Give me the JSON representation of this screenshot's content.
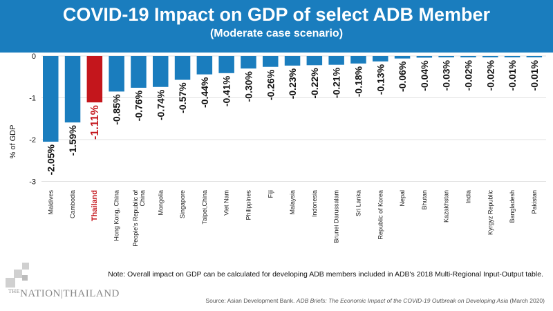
{
  "header": {
    "title": "COVID-19 Impact on GDP of select ADB Member",
    "subtitle": "(Moderate case scenario)"
  },
  "colors": {
    "header_bg": "#1a7dbe",
    "bar": "#1a7dbe",
    "highlight_bar": "#c4161c",
    "label": "#111111"
  },
  "chart_data": {
    "type": "bar",
    "ylabel": "% of GDP",
    "ylim": [
      -3,
      0
    ],
    "yticks": [
      0,
      -1,
      -2,
      -3
    ],
    "grid": true,
    "highlight": "Thailand",
    "categories": [
      "Maldives",
      "Cambodia",
      "Thailand",
      "Hong Kong, China",
      "People's Republic of China",
      "Mongolia",
      "Singapore",
      "Taipei,China",
      "Viet Nam",
      "Philippines",
      "Fiji",
      "Malaysia",
      "Indonesia",
      "Brunei Darussalam",
      "Sri Lanka",
      "Republic of Korea",
      "Nepal",
      "Bhutan",
      "Kazakhstan",
      "India",
      "Kyrgyz Republic",
      "Bangladesh",
      "Pakistan"
    ],
    "values": [
      -2.05,
      -1.59,
      -1.11,
      -0.85,
      -0.76,
      -0.74,
      -0.57,
      -0.44,
      -0.41,
      -0.3,
      -0.26,
      -0.23,
      -0.22,
      -0.21,
      -0.18,
      -0.13,
      -0.06,
      -0.04,
      -0.03,
      -0.02,
      -0.02,
      -0.01,
      -0.01
    ],
    "data_labels": [
      "-2.05%",
      "-1.59%",
      "-1.11%",
      "-0.85%",
      "-0.76%",
      "-0.74%",
      "-0.57%",
      "-0.44%",
      "-0.41%",
      "-0.30%",
      "-0.26%",
      "-0.23%",
      "-0.22%",
      "-0.21%",
      "-0.18%",
      "-0.13%",
      "-0.06%",
      "-0.04%",
      "-0.03%",
      "-0.02%",
      "-0.02%",
      "-0.01%",
      "-0.01%"
    ]
  },
  "note": "Note: Overall impact on GDP can be calculated for developing ADB members included in ADB's 2018 Multi-Regional Input-Output table.",
  "source": {
    "prefix": "Source: Asian Development Bank. ",
    "title": "ADB Briefs: The Economic Impact of the COVID-19 Outbreak on Developing Asia",
    "suffix": " (March 2020)"
  },
  "logo": {
    "the": "THE",
    "text": "NATION|THAILAND"
  }
}
